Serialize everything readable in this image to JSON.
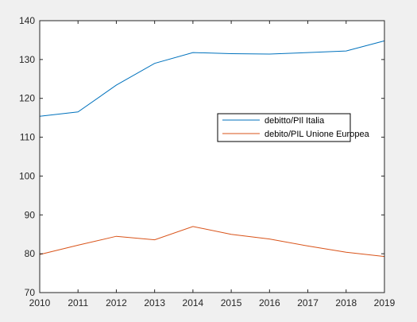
{
  "colors": {
    "figure_background": "#f0f0f0",
    "axes_background": "#ffffff",
    "axis_color": "#262626",
    "legend_border": "#000000"
  },
  "chart_data": {
    "type": "line",
    "title": "",
    "xlabel": "",
    "ylabel": "",
    "x": [
      2010,
      2011,
      2012,
      2013,
      2014,
      2015,
      2016,
      2017,
      2018,
      2019
    ],
    "xlim": [
      2010,
      2019
    ],
    "ylim": [
      70,
      140
    ],
    "xticks": [
      "2010",
      "2011",
      "2012",
      "2013",
      "2014",
      "2015",
      "2016",
      "2017",
      "2018",
      "2019"
    ],
    "yticks": [
      "70",
      "80",
      "90",
      "100",
      "110",
      "120",
      "130",
      "140"
    ],
    "grid": false,
    "legend_position": "right",
    "series": [
      {
        "name": "debitto/PIl Italia",
        "color": "#0072bd",
        "values": [
          115.4,
          116.5,
          123.4,
          129.0,
          131.8,
          131.5,
          131.4,
          131.8,
          132.2,
          134.8
        ]
      },
      {
        "name": "debito/PIL Unione Europea",
        "color": "#d95319",
        "values": [
          79.8,
          82.2,
          84.5,
          83.6,
          87.0,
          85.0,
          83.8,
          82.0,
          80.4,
          79.3
        ]
      }
    ]
  }
}
